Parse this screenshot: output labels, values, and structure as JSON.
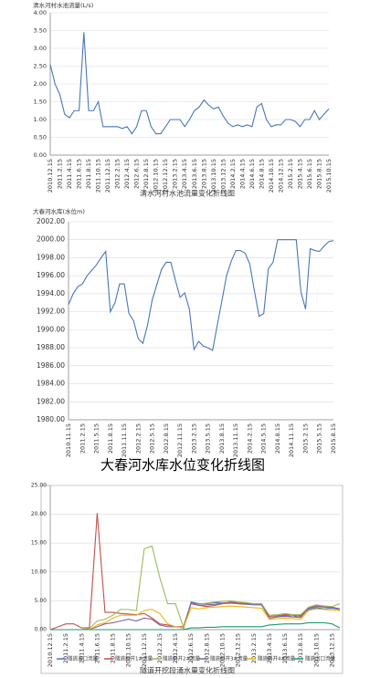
{
  "chart_data": [
    {
      "type": "line",
      "title": "清水河村水池流量变化折线图",
      "ylabel": "清水河村水池流量(L/s)",
      "color": "#4a76b8",
      "grid": true,
      "categories": [
        "2010.12.15",
        null,
        "2011.2.15",
        null,
        "2011.4.15",
        null,
        "2011.6.15",
        null,
        "2011.8.15",
        null,
        "2011.10.15",
        null,
        "2011.12.15",
        null,
        "2012.2.15",
        null,
        "2012.4.15",
        null,
        "2012.6.15",
        null,
        "2012.8.15",
        null,
        "2012.10.15",
        null,
        "2012.12.15",
        null,
        "2013.2.15",
        null,
        "2013.4.15",
        null,
        "2013.6.15",
        null,
        "2013.8.15",
        null,
        "2013.10.15",
        null,
        "2013.12.15",
        null,
        "2014.2.15",
        null,
        "2014.4.15",
        null,
        "2014.6.15",
        null,
        "2014.8.15",
        null,
        "2014.10.15",
        null,
        "2014.12.15",
        null,
        "2015.2.15",
        null,
        "2015.4.15",
        null,
        "2015.6.15",
        null,
        "2015.8.15",
        null,
        "2015.10.15"
      ],
      "values": [
        2.55,
        2.0,
        1.7,
        1.15,
        1.05,
        1.25,
        1.25,
        3.45,
        1.25,
        1.25,
        1.5,
        0.8,
        0.8,
        0.8,
        0.8,
        0.75,
        0.8,
        0.6,
        0.8,
        1.25,
        1.25,
        0.8,
        0.6,
        0.6,
        0.8,
        1.0,
        1.0,
        1.0,
        0.8,
        1.0,
        1.25,
        1.35,
        1.55,
        1.4,
        1.3,
        1.35,
        1.1,
        0.9,
        0.8,
        0.85,
        0.8,
        0.85,
        0.8,
        1.35,
        1.45,
        1.0,
        0.8,
        0.85,
        0.85,
        1.0,
        1.0,
        0.95,
        0.8,
        1.0,
        1.0,
        1.25,
        1.0,
        1.15,
        1.3
      ],
      "ylim": [
        0,
        4
      ],
      "yticks": [
        {
          "value": 0,
          "label": "0.00"
        },
        {
          "value": 0.5,
          "label": "0.50"
        },
        {
          "value": 1,
          "label": "1.00"
        },
        {
          "value": 1.5,
          "label": "1.50"
        },
        {
          "value": 2,
          "label": "2.00"
        },
        {
          "value": 2.5,
          "label": "2.50"
        },
        {
          "value": 3,
          "label": "3.00"
        },
        {
          "value": 3.5,
          "label": "3.50"
        },
        {
          "value": 4,
          "label": "4.00"
        }
      ]
    },
    {
      "type": "line",
      "title": "大春河水库水位变化折线图",
      "ylabel": "大春河水库(水位m)",
      "color": "#4a76b8",
      "grid": true,
      "categories": [
        "2010.11.15",
        null,
        null,
        "2011.2.15",
        null,
        null,
        "2011.5.15",
        null,
        null,
        "2011.8.15",
        null,
        null,
        "2011.11.15",
        null,
        null,
        "2012.2.15",
        null,
        null,
        "2012.5.15",
        null,
        null,
        "2012.8.15",
        null,
        null,
        "2012.11.15",
        null,
        null,
        "2013.2.15",
        null,
        null,
        "2013.5.15",
        null,
        null,
        "2013.8.15",
        null,
        null,
        "2013.11.15",
        null,
        null,
        "2014.2.15",
        null,
        null,
        "2014.5.15",
        null,
        null,
        "2014.8.15",
        null,
        null,
        "2014.11.15",
        null,
        null,
        "2015.2.15",
        null,
        null,
        "2015.5.15",
        null,
        null,
        "2015.8.15"
      ],
      "values": [
        1992.8,
        1994,
        1994.8,
        1995.1,
        1996,
        1996.6,
        1997.2,
        1998.0,
        1998.7,
        1992,
        1993,
        1995.1,
        1995.1,
        1991.8,
        1991.0,
        1989,
        1988.5,
        1990.5,
        1993.3,
        1995,
        1996.7,
        1997.5,
        1997.5,
        1995.5,
        1993.6,
        1994.1,
        1992.3,
        1987.8,
        1988.7,
        1988.2,
        1988.0,
        1987.7,
        1990.5,
        1993.2,
        1996,
        1997.6,
        1998.8,
        1998.8,
        1998.5,
        1997.3,
        1994.3,
        1991.5,
        1991.8,
        1996.8,
        1997.5,
        2000,
        2000,
        2000,
        2000,
        2000,
        1994.2,
        1992.3,
        1999,
        1998.8,
        1998.7,
        1999.3,
        1999.8,
        1999.9
      ],
      "ylim": [
        1980,
        2002
      ],
      "yticks": [
        {
          "value": 1980,
          "label": "1980.00"
        },
        {
          "value": 1982,
          "label": "1982.00"
        },
        {
          "value": 1984,
          "label": "1984.00"
        },
        {
          "value": 1986,
          "label": "1986.00"
        },
        {
          "value": 1988,
          "label": "1988.00"
        },
        {
          "value": 1990,
          "label": "1990.00"
        },
        {
          "value": 1992,
          "label": "1992.00"
        },
        {
          "value": 1994,
          "label": "1994.00"
        },
        {
          "value": 1996,
          "label": "1996.00"
        },
        {
          "value": 1998,
          "label": "1998.00"
        },
        {
          "value": 2000,
          "label": "2000.00"
        },
        {
          "value": 2002,
          "label": "2002.00"
        }
      ]
    },
    {
      "type": "line",
      "title": "隧道开挖段涌水量变化折线图",
      "grid": true,
      "categories": [
        "2010.12.15",
        null,
        "2011.2.15",
        null,
        "2011.4.15",
        null,
        "2011.6.15",
        null,
        "2011.8.15",
        null,
        "2011.10.15",
        null,
        "2011.12.15",
        null,
        "2012.2.15",
        null,
        "2012.4.15",
        null,
        "2012.6.15",
        null,
        "2012.8.15",
        null,
        "2012.10.15",
        null,
        "2012.12.15",
        null,
        "2013.2.15",
        null,
        "2013.4.15",
        null,
        "2013.6.15",
        null,
        "2013.8.15",
        null,
        "2013.10.15",
        null,
        "2013.12.15",
        null
      ],
      "series": [
        {
          "name": "隧道进口流量",
          "color": "#4472c4",
          "values": [
            0,
            0,
            0,
            0,
            0,
            0,
            0,
            0,
            0,
            0,
            0,
            0,
            0,
            0,
            0,
            0,
            0,
            0,
            4.8,
            4.5,
            4.5,
            4.7,
            4.6,
            4.7,
            4.5,
            4.5,
            4.5,
            4.4,
            2.0,
            2.2,
            2.5,
            2.2,
            2.5,
            3.5,
            3.8,
            3.6,
            3.7,
            3.5
          ]
        },
        {
          "name": "隧道斜井1#流量",
          "color": "#c0504d",
          "values": [
            0,
            0.5,
            1.0,
            1.0,
            0.3,
            0.3,
            20.2,
            3.0,
            3.0,
            2.8,
            2.7,
            2.6,
            2.8,
            2.0,
            1.0,
            0.8,
            0.5,
            0.5,
            4.5,
            4.2,
            4.0,
            4.2,
            4.5,
            4.8,
            4.7,
            4.6,
            4.5,
            4.3,
            2.3,
            2.4,
            2.6,
            2.5,
            2.3,
            3.8,
            4.2,
            4.0,
            3.9,
            3.6
          ]
        },
        {
          "name": "隧道斜井2#流量",
          "color": "#9bbb59",
          "values": [
            0,
            0,
            0,
            0,
            0,
            0.2,
            1.5,
            1.8,
            2.5,
            3.5,
            3.5,
            3.3,
            14.0,
            14.5,
            9,
            4.5,
            4.5,
            0.5,
            4.6,
            4.4,
            4.6,
            4.8,
            4.9,
            5.0,
            4.8,
            4.7,
            4.5,
            4.5,
            2.5,
            2.6,
            2.8,
            2.6,
            2.6,
            3.9,
            4.3,
            4.1,
            4.0,
            4.5
          ]
        },
        {
          "name": "隧道斜井3#流量",
          "color": "#8064a2",
          "values": [
            0,
            0,
            0,
            0,
            0,
            0,
            0.5,
            1.0,
            1.2,
            1.5,
            1.8,
            1.5,
            2.0,
            1.8,
            0.8,
            0.5,
            0.5,
            0.3,
            4.7,
            4.2,
            4.3,
            4.4,
            4.5,
            4.6,
            4.5,
            4.4,
            4.3,
            4.3,
            2.0,
            2.2,
            2.3,
            2.2,
            2.1,
            3.7,
            4.0,
            3.9,
            3.8,
            3.6
          ]
        },
        {
          "name": "隧道斜井4#流量",
          "color": "#f4b30c",
          "values": [
            0,
            0,
            0,
            0,
            0,
            0,
            0.8,
            1.2,
            2.0,
            2.5,
            2.5,
            2.5,
            3.3,
            3.5,
            2.8,
            1.0,
            0.5,
            0.3,
            3.8,
            3.6,
            3.8,
            3.9,
            4.0,
            4.1,
            4.0,
            3.9,
            3.8,
            3.7,
            1.8,
            1.9,
            2.0,
            1.9,
            1.8,
            3.3,
            3.6,
            3.5,
            3.4,
            3.3
          ]
        },
        {
          "name": "隧道出口流量",
          "color": "#1a9e6a",
          "values": [
            0,
            0,
            0,
            0,
            0,
            0,
            0,
            0,
            0,
            0,
            0,
            0,
            0,
            0,
            0,
            0,
            0,
            0,
            0.3,
            0.3,
            0.4,
            0.4,
            0.5,
            0.5,
            0.5,
            0.5,
            0.5,
            0.5,
            0.8,
            0.9,
            1.0,
            1.0,
            1.0,
            1.2,
            1.2,
            1.2,
            1.0,
            0.3
          ]
        }
      ],
      "ylim": [
        0,
        25
      ],
      "yticks": [
        {
          "value": 0,
          "label": "0.00"
        },
        {
          "value": 5,
          "label": "5.00"
        },
        {
          "value": 10,
          "label": "10.00"
        },
        {
          "value": 15,
          "label": "15.00"
        },
        {
          "value": 20,
          "label": "20.00"
        },
        {
          "value": 25,
          "label": "25.00"
        }
      ]
    }
  ]
}
